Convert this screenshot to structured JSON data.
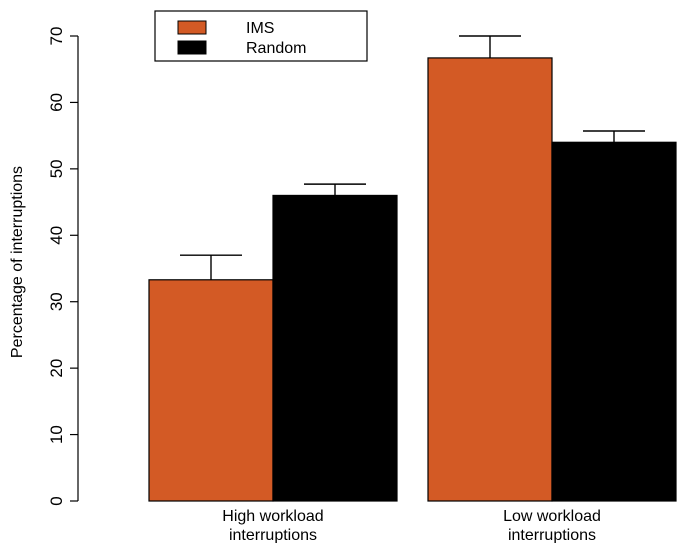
{
  "chart_data": {
    "type": "bar",
    "title": "",
    "xlabel": "",
    "ylabel": "Percentage of interruptions",
    "ylim": [
      0,
      70
    ],
    "yticks": [
      "0",
      "10",
      "20",
      "30",
      "40",
      "50",
      "60",
      "70"
    ],
    "grid": false,
    "legend_position": "top-left",
    "categories": [
      [
        "High workload",
        "interruptions"
      ],
      [
        "Low workload",
        "interruptions"
      ]
    ],
    "series": [
      {
        "name": "IMS",
        "color": "#d35a25",
        "values": [
          33.3,
          66.7
        ],
        "error_upper": [
          37.0,
          70.0
        ]
      },
      {
        "name": "Random",
        "color": "#000000",
        "values": [
          46.0,
          54.0
        ],
        "error_upper": [
          47.7,
          55.7
        ]
      }
    ]
  }
}
